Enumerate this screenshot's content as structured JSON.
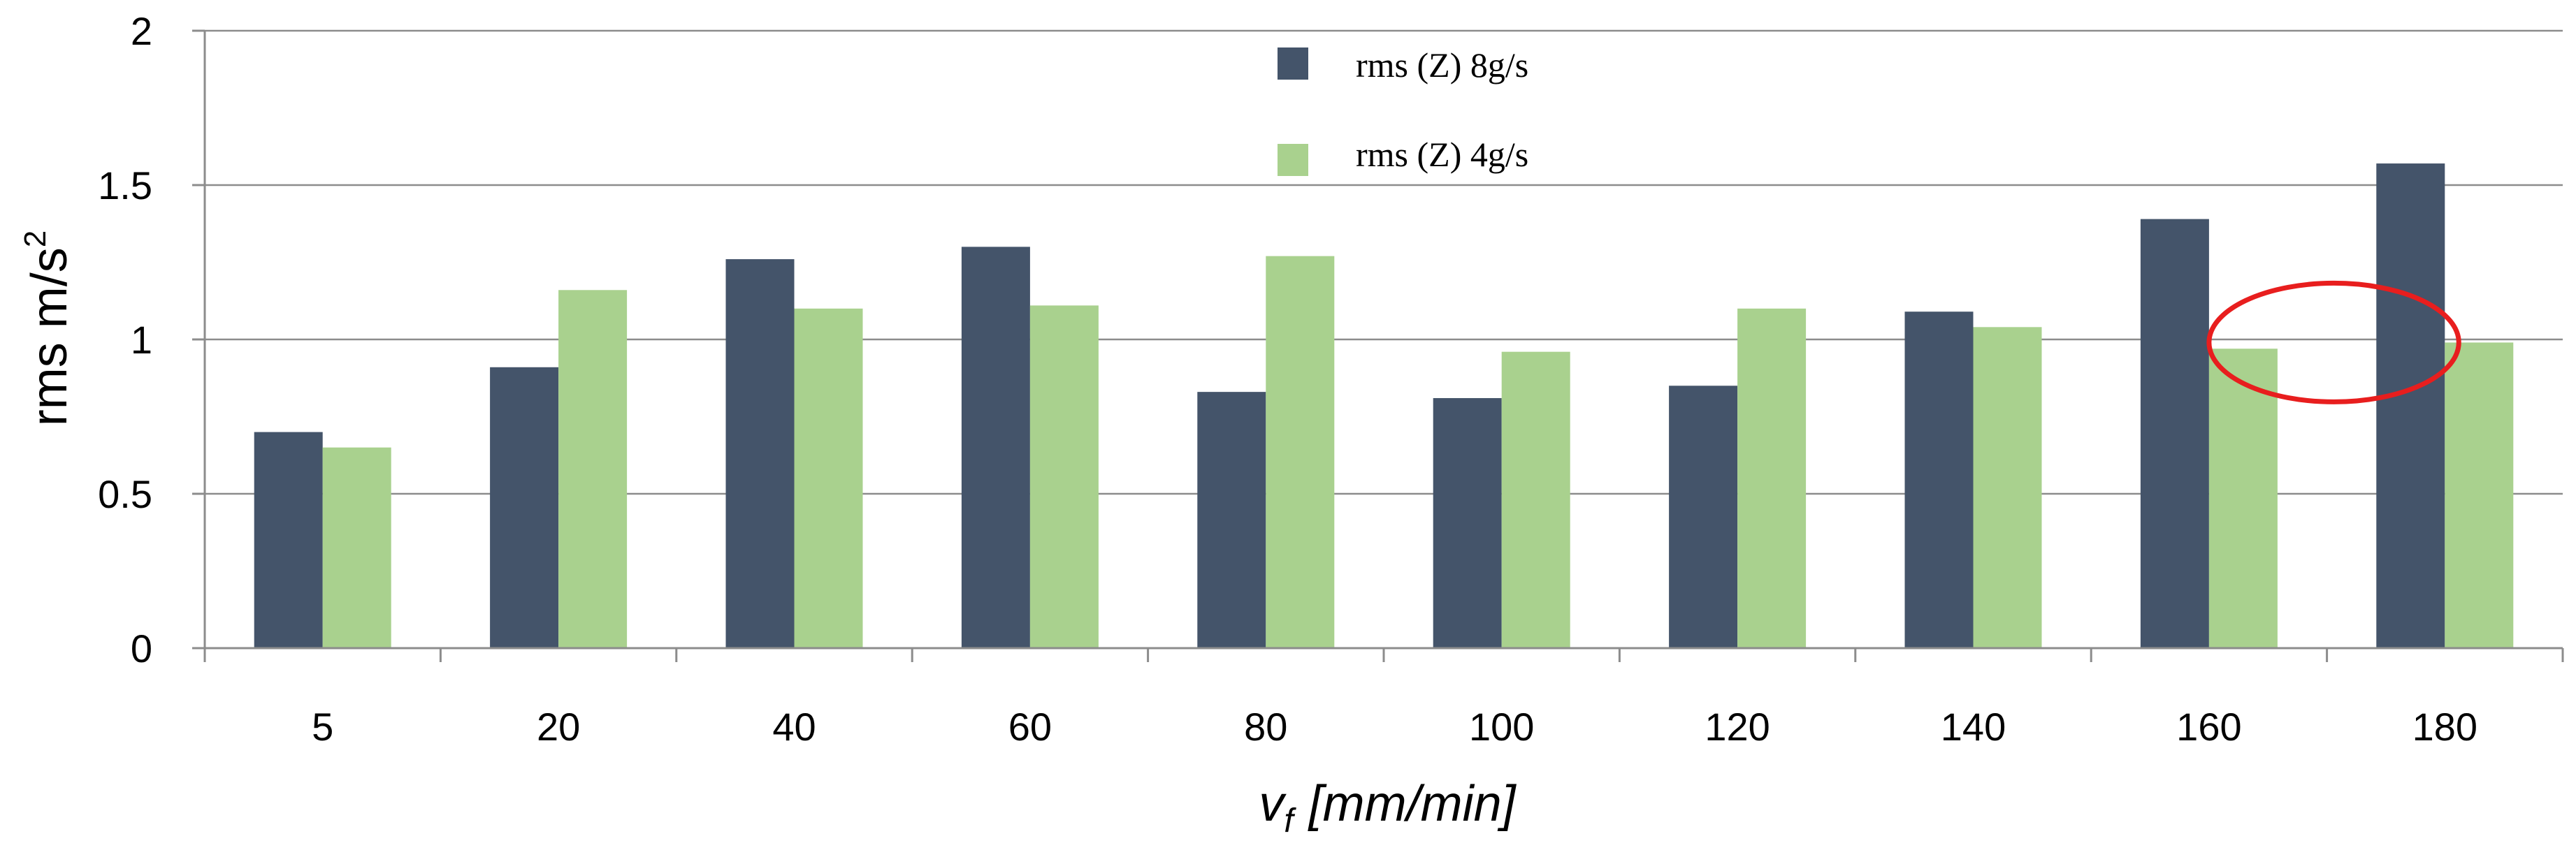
{
  "chart_data": {
    "type": "bar",
    "categories": [
      "5",
      "20",
      "40",
      "60",
      "80",
      "100",
      "120",
      "140",
      "160",
      "180"
    ],
    "series": [
      {
        "name": "rms (Z) 8g/s",
        "color": "#44546A",
        "values": [
          0.7,
          0.91,
          1.26,
          1.3,
          0.83,
          0.81,
          0.85,
          1.09,
          1.39,
          1.57
        ]
      },
      {
        "name": "rms (Z) 4g/s",
        "color": "#A9D18E",
        "values": [
          0.65,
          1.16,
          1.1,
          1.11,
          1.27,
          0.96,
          1.1,
          1.04,
          0.97,
          0.99
        ]
      }
    ],
    "ylim": [
      0,
      2
    ],
    "yticks": [
      "0",
      "0.5",
      "1",
      "1.5",
      "2"
    ],
    "ytick_values": [
      0,
      0.5,
      1,
      1.5,
      2
    ],
    "ylabel": {
      "text": "rms m/s",
      "superscript": "2"
    },
    "xlabel": {
      "symbol": "v",
      "subscript": "f",
      "unit": "[mm/min]"
    },
    "grid": "horizontal",
    "legend_position": "top-center",
    "annotation": {
      "shape": "ellipse",
      "color": "#E81E1E",
      "category_from": "160",
      "category_to": "180",
      "y_center": 0.99
    }
  }
}
